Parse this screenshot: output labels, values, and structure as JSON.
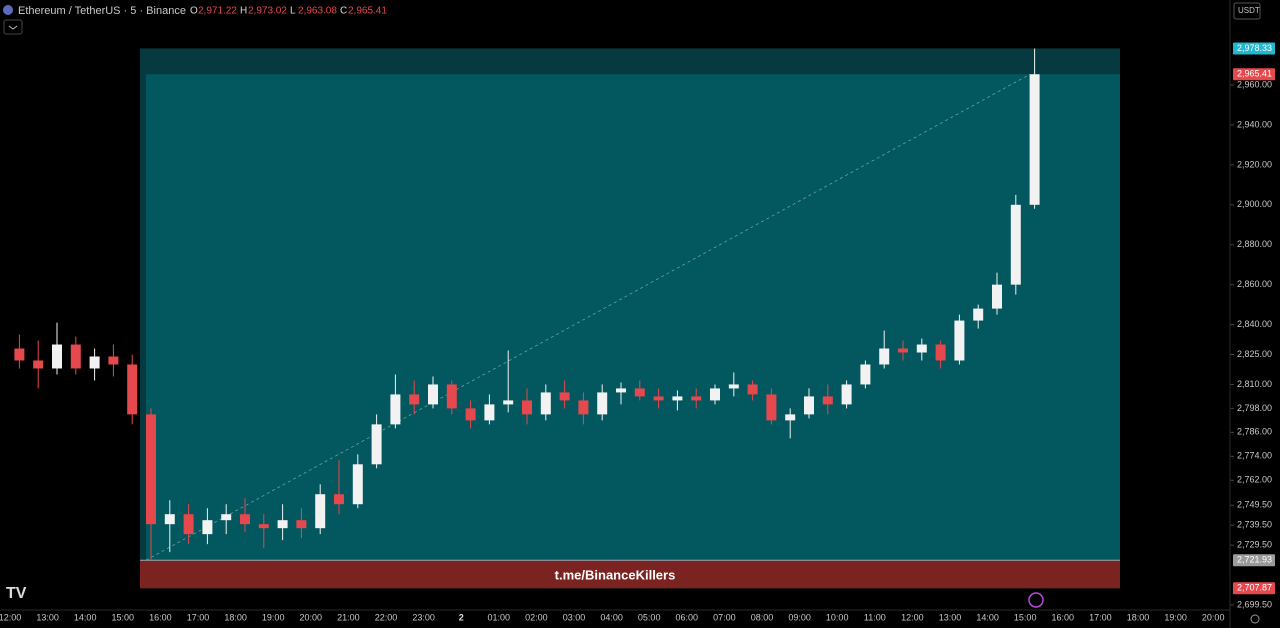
{
  "chart_data": {
    "type": "candlestick",
    "title": "Ethereum / TetherUS · 5 · Binance",
    "ohlc_header": [
      {
        "label": "O",
        "value": "2,971.22"
      },
      {
        "label": "H",
        "value": "2,973.02"
      },
      {
        "label": "L",
        "value": "2,963.08"
      },
      {
        "label": "C",
        "value": "2,965.41"
      }
    ],
    "currency": "USDT",
    "watermark": "t.me/BinanceKillers",
    "up_color": "#f2f2f2",
    "down_color": "#e5484d",
    "ylim": [
      2697,
      3002.6
    ],
    "yticks": [
      {
        "value": 2960,
        "label": "2,960.00"
      },
      {
        "value": 2940,
        "label": "2,940.00"
      },
      {
        "value": 2920,
        "label": "2,920.00"
      },
      {
        "value": 2900,
        "label": "2,900.00"
      },
      {
        "value": 2880,
        "label": "2,880.00"
      },
      {
        "value": 2860,
        "label": "2,860.00"
      },
      {
        "value": 2840,
        "label": "2,840.00"
      },
      {
        "value": 2825,
        "label": "2,825.00"
      },
      {
        "value": 2810,
        "label": "2,810.00"
      },
      {
        "value": 2798,
        "label": "2,798.00"
      },
      {
        "value": 2786,
        "label": "2,786.00"
      },
      {
        "value": 2774,
        "label": "2,774.00"
      },
      {
        "value": 2762,
        "label": "2,762.00"
      },
      {
        "value": 2749.5,
        "label": "2,749.50"
      },
      {
        "value": 2739.5,
        "label": "2,739.50"
      },
      {
        "value": 2729.5,
        "label": "2,729.50"
      },
      {
        "value": 2699.5,
        "label": "2,699.50"
      }
    ],
    "levels": [
      {
        "value": 2978.33,
        "label": "2,978.33",
        "color": "#22b8cf"
      },
      {
        "value": 2965.41,
        "label": "2,965.41",
        "color": "#e5484d"
      },
      {
        "value": 2721.93,
        "label": "2,721.93",
        "color": "#9a9a9a"
      },
      {
        "value": 2707.87,
        "label": "2,707.87",
        "color": "#e5484d"
      }
    ],
    "time_ticks": [
      "12:00",
      "13:00",
      "14:00",
      "15:00",
      "16:00",
      "17:00",
      "18:00",
      "19:00",
      "20:00",
      "21:00",
      "22:00",
      "23:00",
      "2",
      "01:00",
      "02:00",
      "03:00",
      "04:00",
      "05:00",
      "06:00",
      "07:00",
      "08:00",
      "09:00",
      "10:00",
      "11:00",
      "12:00",
      "13:00",
      "14:00",
      "15:00",
      "16:00",
      "17:00",
      "18:00",
      "19:00",
      "20:00"
    ],
    "open": [
      2828,
      2822,
      2818,
      2830,
      2818,
      2824,
      2820,
      2795,
      2740,
      2745,
      2735,
      2742,
      2745,
      2740,
      2738,
      2742,
      2738,
      2755,
      2750,
      2770,
      2790,
      2805,
      2800,
      2810,
      2798,
      2792,
      2800,
      2802,
      2795,
      2806,
      2802,
      2795,
      2806,
      2808,
      2804,
      2802,
      2804,
      2802,
      2808,
      2810,
      2805,
      2792,
      2795,
      2804,
      2800,
      2810,
      2820,
      2828,
      2826,
      2830,
      2822,
      2842,
      2848,
      2860,
      2900
    ],
    "high": [
      2835,
      2832,
      2841,
      2834,
      2828,
      2830,
      2825,
      2798,
      2752,
      2750,
      2748,
      2750,
      2753,
      2745,
      2750,
      2748,
      2760,
      2772,
      2775,
      2795,
      2815,
      2812,
      2814,
      2812,
      2802,
      2805,
      2827,
      2808,
      2810,
      2812,
      2806,
      2810,
      2811,
      2812,
      2808,
      2807,
      2808,
      2810,
      2816,
      2812,
      2808,
      2798,
      2808,
      2810,
      2812,
      2822,
      2837,
      2832,
      2833,
      2832,
      2845,
      2850,
      2866,
      2905,
      2978.33
    ],
    "low": [
      2818,
      2808,
      2815,
      2815,
      2812,
      2814,
      2790,
      2722,
      2726,
      2730,
      2730,
      2735,
      2736,
      2728,
      2732,
      2733,
      2735,
      2745,
      2748,
      2768,
      2788,
      2795,
      2798,
      2795,
      2788,
      2790,
      2796,
      2790,
      2792,
      2798,
      2790,
      2792,
      2800,
      2802,
      2798,
      2797,
      2798,
      2800,
      2804,
      2802,
      2790,
      2783,
      2793,
      2795,
      2798,
      2808,
      2818,
      2822,
      2822,
      2818,
      2820,
      2838,
      2845,
      2855,
      2898
    ],
    "close": [
      2822,
      2818,
      2830,
      2818,
      2824,
      2820,
      2795,
      2740,
      2745,
      2735,
      2742,
      2745,
      2740,
      2738,
      2742,
      2738,
      2755,
      2750,
      2770,
      2790,
      2805,
      2800,
      2810,
      2798,
      2792,
      2800,
      2802,
      2795,
      2806,
      2802,
      2795,
      2806,
      2808,
      2804,
      2802,
      2804,
      2802,
      2808,
      2810,
      2805,
      2792,
      2795,
      2804,
      2800,
      2810,
      2820,
      2828,
      2826,
      2830,
      2822,
      2842,
      2848,
      2860,
      2900,
      2965.41
    ]
  }
}
